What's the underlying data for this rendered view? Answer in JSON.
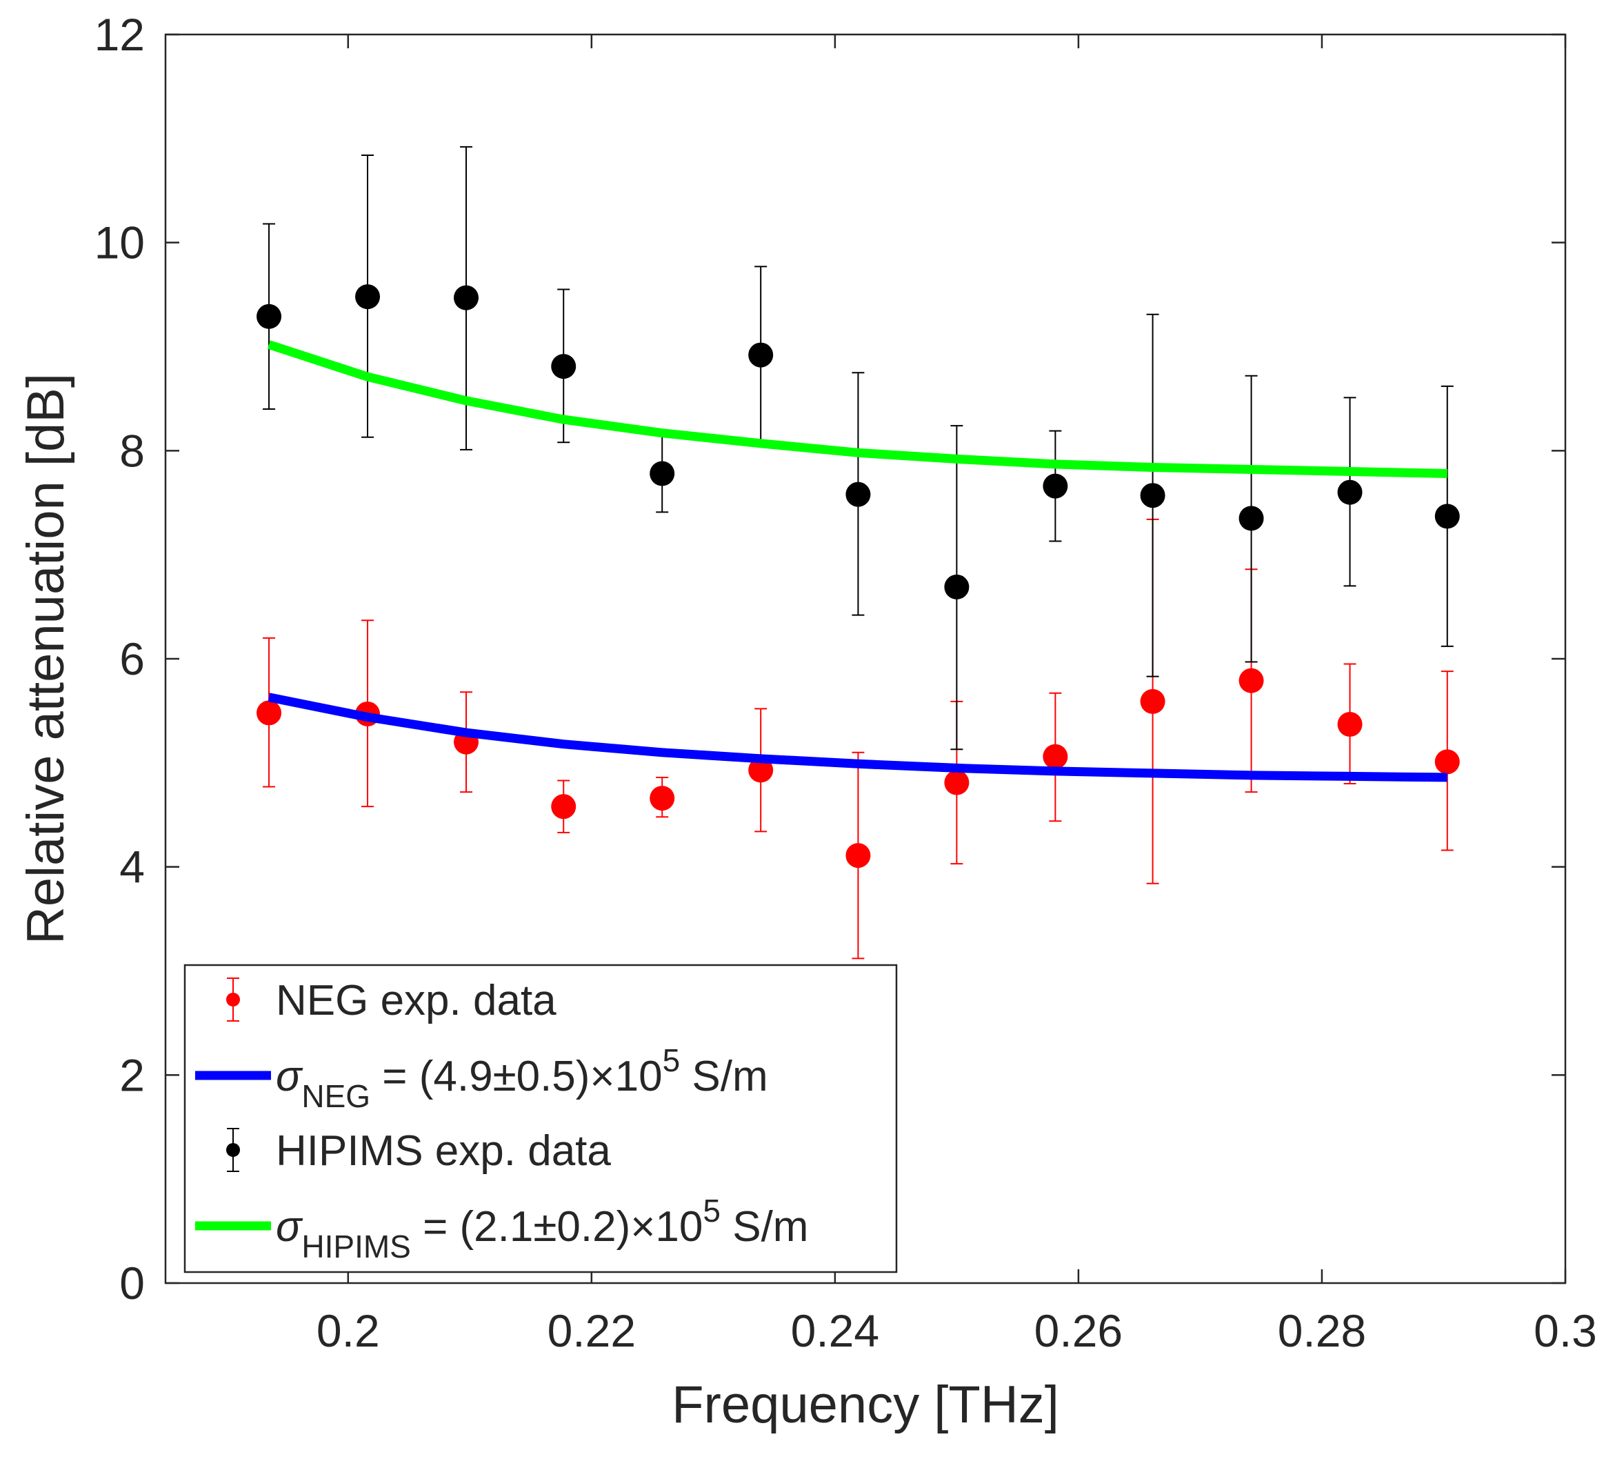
{
  "chart_data": {
    "type": "scatter",
    "xlabel": "Frequency [THz]",
    "ylabel": "Relative attenuation [dB]",
    "xlim": [
      0.185,
      0.3
    ],
    "ylim": [
      0,
      12
    ],
    "xticks": [
      0.2,
      0.22,
      0.24,
      0.26,
      0.28,
      0.3
    ],
    "xtick_labels": [
      "0.2",
      "0.22",
      "0.24",
      "0.26",
      "0.28",
      "0.3"
    ],
    "yticks": [
      0,
      2,
      4,
      6,
      8,
      10,
      12
    ],
    "ytick_labels": [
      "0",
      "2",
      "4",
      "6",
      "8",
      "10",
      "12"
    ],
    "grid": false,
    "legend_position": "bottom-left",
    "x": [
      0.1935,
      0.2016,
      0.2097,
      0.2177,
      0.2258,
      0.2339,
      0.2419,
      0.25,
      0.2581,
      0.2661,
      0.2742,
      0.2823,
      0.2903
    ],
    "series": [
      {
        "name": "NEG exp. data",
        "kind": "errorbar",
        "color": "#ff0000",
        "y": [
          5.48,
          5.47,
          5.2,
          4.58,
          4.66,
          4.93,
          4.11,
          4.81,
          5.06,
          5.59,
          5.79,
          5.37,
          5.01
        ],
        "err_low": [
          4.77,
          4.58,
          4.72,
          4.33,
          4.48,
          4.34,
          3.12,
          4.03,
          4.44,
          3.84,
          4.72,
          4.8,
          4.16
        ],
        "err_high": [
          6.2,
          6.37,
          5.68,
          4.83,
          4.86,
          5.52,
          5.1,
          5.59,
          5.67,
          7.34,
          6.86,
          5.95,
          5.88
        ]
      },
      {
        "name": "HIPIMS exp. data",
        "kind": "errorbar",
        "color": "#000000",
        "y": [
          9.29,
          9.48,
          9.47,
          8.81,
          7.78,
          8.92,
          7.58,
          6.69,
          7.66,
          7.57,
          7.35,
          7.6,
          7.37
        ],
        "err_low": [
          8.4,
          8.13,
          8.01,
          8.08,
          7.41,
          8.1,
          6.42,
          5.13,
          7.13,
          5.83,
          5.97,
          6.7,
          6.12
        ],
        "err_high": [
          10.18,
          10.84,
          10.92,
          9.55,
          8.16,
          9.77,
          8.75,
          8.24,
          8.19,
          9.31,
          8.72,
          8.51,
          8.62
        ]
      }
    ],
    "fits": [
      {
        "color": "#0000ff",
        "legend_sigma": "σ",
        "legend_sub": "NEG",
        "legend_main": " = (4.9±0.5)×10",
        "legend_exp": "5",
        "legend_unit": " S/m",
        "x": [
          0.1935,
          0.2016,
          0.2097,
          0.2177,
          0.2258,
          0.2339,
          0.2419,
          0.25,
          0.2581,
          0.2661,
          0.2742,
          0.2823,
          0.2903
        ],
        "y": [
          5.63,
          5.44,
          5.29,
          5.18,
          5.1,
          5.04,
          4.99,
          4.95,
          4.92,
          4.9,
          4.88,
          4.87,
          4.86
        ]
      },
      {
        "color": "#00ff00",
        "legend_sigma": "σ",
        "legend_sub": "HIPIMS",
        "legend_main": " = (2.1±0.2)×10",
        "legend_exp": "5",
        "legend_unit": " S/m",
        "x": [
          0.1935,
          0.2016,
          0.2097,
          0.2177,
          0.2258,
          0.2339,
          0.2419,
          0.25,
          0.2581,
          0.2661,
          0.2742,
          0.2823,
          0.2903
        ],
        "y": [
          9.02,
          8.71,
          8.48,
          8.3,
          8.17,
          8.07,
          7.98,
          7.92,
          7.87,
          7.84,
          7.82,
          7.8,
          7.78
        ]
      }
    ]
  }
}
